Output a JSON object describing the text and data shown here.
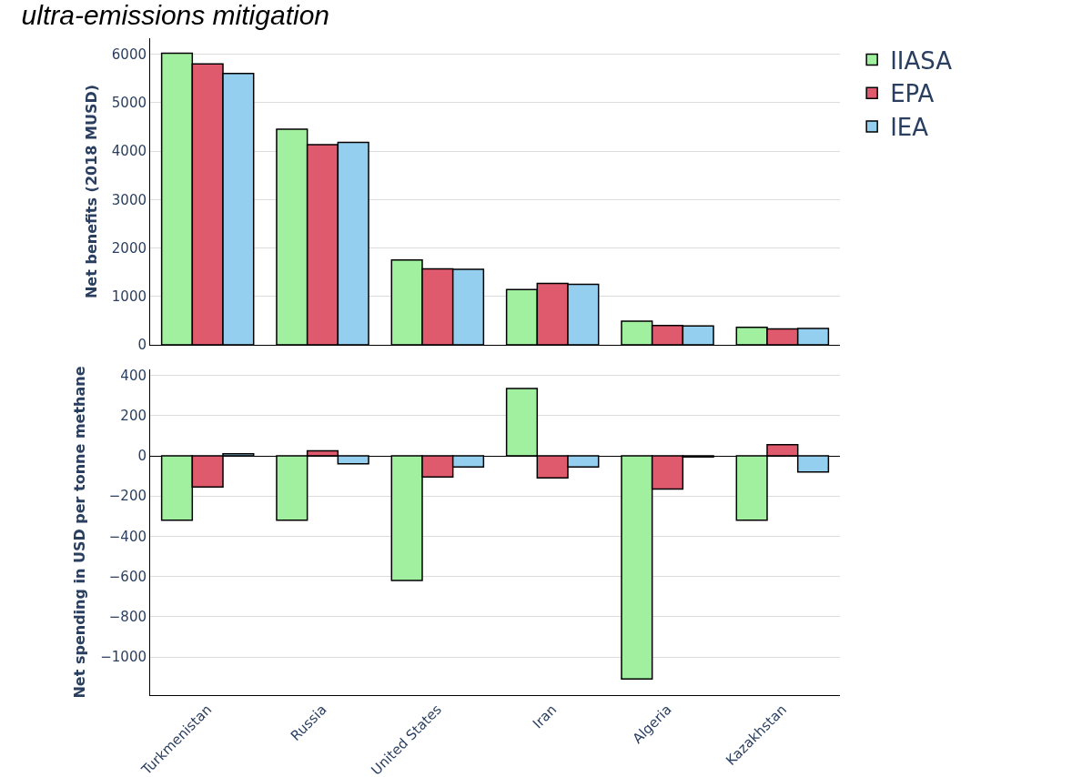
{
  "chart_data": [
    {
      "type": "bar",
      "title": "ultra-emissions mitigation",
      "ylabel": "Net benefits (2018 MUSD)",
      "categories": [
        null,
        null,
        null,
        null,
        null,
        null
      ],
      "series": [
        {
          "name": "IIASA",
          "color": "#a0f0a0",
          "values": [
            6020,
            4450,
            1750,
            1140,
            490,
            360
          ]
        },
        {
          "name": "EPA",
          "color": "#e05a6e",
          "values": [
            5800,
            4130,
            1570,
            1270,
            400,
            330
          ]
        },
        {
          "name": "IEA",
          "color": "#94cff0",
          "values": [
            5600,
            4180,
            1560,
            1250,
            390,
            340
          ]
        }
      ],
      "ylim": [
        0,
        6330
      ],
      "yticks": [
        0,
        1000,
        2000,
        3000,
        4000,
        5000,
        6000
      ],
      "grid": "y",
      "legend": "top right",
      "tick_labels": "y"
    },
    {
      "type": "bar",
      "ylabel": "Net spending in USD per tonne methane",
      "categories": [
        "Turkmenistan",
        "Russia",
        "United States",
        "Iran",
        "Algeria",
        "Kazakhstan"
      ],
      "series": [
        {
          "color": "#a0f0a0",
          "values": [
            -320,
            -320,
            -620,
            335,
            -1110,
            -320
          ]
        },
        {
          "color": "#e05a6e",
          "values": [
            -155,
            25,
            -105,
            -110,
            -165,
            55
          ]
        },
        {
          "color": "#94cff0",
          "values": [
            10,
            -40,
            -55,
            -55,
            -5,
            -80
          ]
        }
      ],
      "ylim": [
        -1190,
        430
      ],
      "yticks": [
        {
          "value": -1000,
          "label": "−1000"
        },
        {
          "value": -800,
          "label": "−800"
        },
        {
          "value": -600,
          "label": "−600"
        },
        {
          "value": -400,
          "label": "−400"
        },
        {
          "value": -200,
          "label": "−200"
        },
        0,
        200,
        400
      ],
      "grid": "y"
    }
  ]
}
